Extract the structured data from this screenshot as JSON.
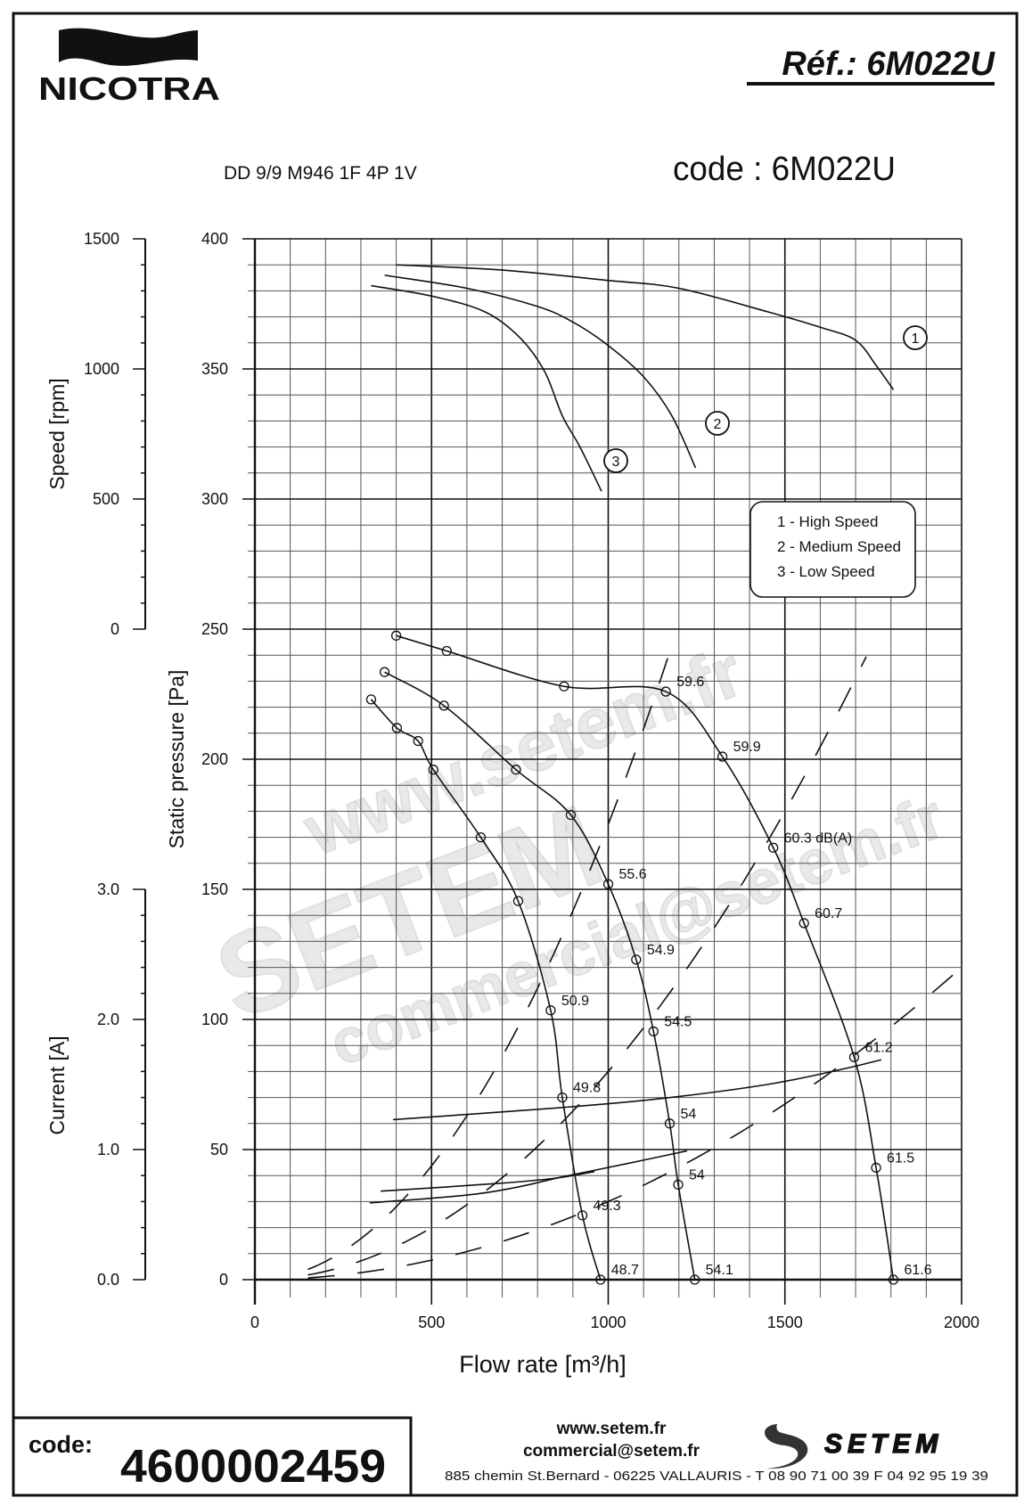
{
  "header": {
    "brand": "NICOTRA",
    "reference": "Réf.: 6M022U",
    "model": "DD 9/9 M946 1F 4P 1V",
    "code_title": "code : 6M022U"
  },
  "watermark": {
    "line1": "www.setem.fr",
    "line2": "SETEM",
    "line3": "commercial@setem.fr"
  },
  "footer": {
    "code_label": "code:",
    "code_value": "4600002459",
    "website": "www.setem.fr",
    "email": "commercial@setem.fr",
    "address": "885 chemin St.Bernard  -  06225 VALLAURIS  -  T 08 90 71 00 39   F 04 92 95 19 39",
    "partner_logo": "SETEM"
  },
  "chart_data": {
    "type": "line",
    "xlabel": "Flow rate [m³/h]",
    "ylabel": "Static pressure [Pa]",
    "speed_axis_label": "Speed [rpm]",
    "current_axis_label": "Current [A]",
    "xlim": [
      0,
      2000
    ],
    "ylim": [
      0,
      400
    ],
    "x_ticks": [
      "0",
      "500",
      "1000",
      "1500",
      "2000"
    ],
    "y_ticks": [
      "0",
      "50",
      "100",
      "150",
      "200",
      "250",
      "300",
      "350",
      "400"
    ],
    "speed_ticks": [
      "0",
      "500",
      "1000",
      "1500"
    ],
    "current_ticks": [
      "0.0",
      "1.0",
      "2.0",
      "3.0"
    ],
    "grid": true,
    "legend": {
      "placement": "right",
      "entries": [
        "1 - High Speed",
        "2 - Medium Speed",
        "3 - Low Speed"
      ]
    },
    "curve_markers": [
      "1",
      "2",
      "3"
    ],
    "pressure_series": [
      {
        "name": "1 - High Speed",
        "points": [
          [
            400,
            247.5
          ],
          [
            543,
            241.6
          ],
          [
            875,
            228
          ],
          [
            1163,
            226
          ],
          [
            1323,
            201
          ],
          [
            1467,
            166
          ],
          [
            1554,
            137
          ],
          [
            1696,
            85.5
          ],
          [
            1758,
            43
          ],
          [
            1807,
            0
          ]
        ],
        "noise_labels": [
          null,
          null,
          null,
          "59.6",
          "59.9",
          "60.3 dB(A)",
          "60.7",
          "61.2",
          "61.5",
          "61.6"
        ]
      },
      {
        "name": "2 - Medium Speed",
        "points": [
          [
            367,
            233.5
          ],
          [
            535,
            220.6
          ],
          [
            739,
            196
          ],
          [
            894,
            178.6
          ],
          [
            1000,
            152
          ],
          [
            1079,
            123
          ],
          [
            1128,
            95.4
          ],
          [
            1174,
            60
          ],
          [
            1198,
            36.5
          ],
          [
            1245,
            0
          ]
        ],
        "noise_labels": [
          null,
          null,
          null,
          null,
          "55.6",
          "54.9",
          "54.5",
          "54",
          "54",
          "54.1"
        ]
      },
      {
        "name": "3 - Low Speed",
        "points": [
          [
            329,
            223
          ],
          [
            402,
            212
          ],
          [
            462,
            207
          ],
          [
            505,
            196
          ],
          [
            639,
            170
          ],
          [
            745,
            145.5
          ],
          [
            837,
            103.5
          ],
          [
            870,
            70
          ],
          [
            927,
            24.7
          ],
          [
            978,
            0
          ]
        ],
        "noise_labels": [
          null,
          null,
          null,
          null,
          null,
          null,
          "50.9",
          "49.8",
          "49.3",
          "48.7"
        ]
      }
    ],
    "speed_series_rpm": [
      {
        "name": "1",
        "points": [
          [
            400,
            1400
          ],
          [
            700,
            1380
          ],
          [
            1000,
            1340
          ],
          [
            1200,
            1310
          ],
          [
            1450,
            1220
          ],
          [
            1600,
            1160
          ],
          [
            1700,
            1110
          ],
          [
            1760,
            1010
          ],
          [
            1807,
            920
          ]
        ]
      },
      {
        "name": "2",
        "points": [
          [
            367,
            1360
          ],
          [
            600,
            1310
          ],
          [
            800,
            1240
          ],
          [
            900,
            1180
          ],
          [
            1000,
            1090
          ],
          [
            1100,
            970
          ],
          [
            1180,
            820
          ],
          [
            1247,
            620
          ]
        ]
      },
      {
        "name": "3",
        "points": [
          [
            329,
            1320
          ],
          [
            500,
            1280
          ],
          [
            650,
            1220
          ],
          [
            750,
            1120
          ],
          [
            820,
            990
          ],
          [
            870,
            820
          ],
          [
            920,
            700
          ],
          [
            981,
            530
          ]
        ]
      }
    ],
    "current_series_A": [
      {
        "name": "1",
        "points": [
          [
            391,
            1.23
          ],
          [
            855,
            1.32
          ],
          [
            1143,
            1.39
          ],
          [
            1450,
            1.5
          ],
          [
            1650,
            1.61
          ],
          [
            1773,
            1.69
          ]
        ]
      },
      {
        "name": "2",
        "points": [
          [
            325,
            0.59
          ],
          [
            600,
            0.65
          ],
          [
            741,
            0.71
          ],
          [
            870,
            0.79
          ],
          [
            1050,
            0.89
          ],
          [
            1223,
            0.99
          ]
        ]
      },
      {
        "name": "3",
        "points": [
          [
            356,
            0.68
          ],
          [
            691,
            0.74
          ],
          [
            850,
            0.78
          ],
          [
            961,
            0.83
          ]
        ]
      }
    ],
    "system_curves_k": [
      0.000175,
      8e-05,
      3e-05
    ]
  }
}
